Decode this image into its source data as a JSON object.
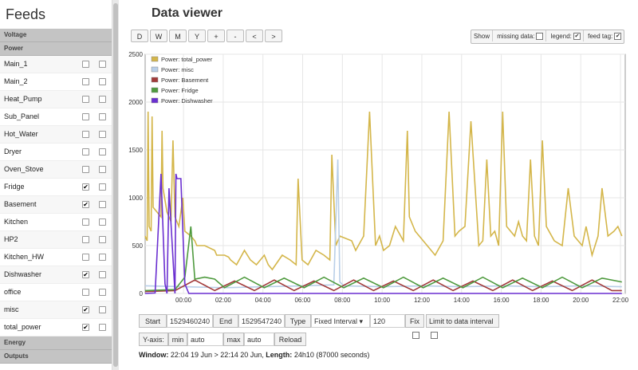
{
  "sidebar": {
    "title": "Feeds",
    "groups": {
      "voltage": "Voltage",
      "power": "Power",
      "energy": "Energy",
      "outputs": "Outputs"
    },
    "feeds": [
      {
        "name": "Main_1",
        "left": false,
        "right": false
      },
      {
        "name": "Main_2",
        "left": false,
        "right": false
      },
      {
        "name": "Heat_Pump",
        "left": false,
        "right": false
      },
      {
        "name": "Sub_Panel",
        "left": false,
        "right": false
      },
      {
        "name": "Hot_Water",
        "left": false,
        "right": false
      },
      {
        "name": "Dryer",
        "left": false,
        "right": false
      },
      {
        "name": "Oven_Stove",
        "left": false,
        "right": false
      },
      {
        "name": "Fridge",
        "left": true,
        "right": false
      },
      {
        "name": "Basement",
        "left": true,
        "right": false
      },
      {
        "name": "Kitchen",
        "left": false,
        "right": false
      },
      {
        "name": "HP2",
        "left": false,
        "right": false
      },
      {
        "name": "Kitchen_HW",
        "left": false,
        "right": false
      },
      {
        "name": "Dishwasher",
        "left": true,
        "right": false
      },
      {
        "name": "office",
        "left": false,
        "right": false
      },
      {
        "name": "misc",
        "left": true,
        "right": false
      },
      {
        "name": "total_power",
        "left": true,
        "right": false
      }
    ]
  },
  "main": {
    "title": "Data viewer",
    "range_buttons": [
      "D",
      "W",
      "M",
      "Y",
      "+",
      "-",
      "<",
      ">"
    ],
    "options": {
      "show": "Show",
      "missing_data": "missing data:",
      "legend": "legend:",
      "feed_tag": "feed tag:",
      "missing_checked": false,
      "legend_checked": true,
      "feed_tag_checked": true
    }
  },
  "controls": {
    "start_label": "Start",
    "start_value": "1529460240",
    "end_label": "End",
    "end_value": "1529547240",
    "type_label": "Type",
    "type_value": "Fixed Interval",
    "interval_value": "120",
    "fix_label": "Fix",
    "limit_label": "Limit to data interval",
    "yaxis_label": "Y-axis:",
    "min_label": "min",
    "min_value": "auto",
    "max_label": "max",
    "max_value": "auto",
    "reload_label": "Reload"
  },
  "window_info": {
    "window_label": "Window:",
    "window_value": "22:04 19 Jun > 22:14 20 Jun,",
    "length_label": "Length:",
    "length_value": "24h10 (87000 seconds)"
  },
  "chart_data": {
    "type": "line",
    "x_ticks": [
      "00:00",
      "02:00",
      "04:00",
      "06:00",
      "08:00",
      "10:00",
      "12:00",
      "14:00",
      "16:00",
      "18:00",
      "20:00",
      "22:00"
    ],
    "x_tick_hours": [
      1.93,
      3.93,
      5.93,
      7.93,
      9.93,
      11.93,
      13.93,
      15.93,
      17.93,
      19.93,
      21.93,
      23.93
    ],
    "xlim": [
      0,
      24.17
    ],
    "ylim": [
      0,
      2500
    ],
    "y_ticks": [
      0,
      500,
      1000,
      1500,
      2000,
      2500
    ],
    "legend": [
      "Power: total_power",
      "Power: misc",
      "Power: Basement",
      "Power: Fridge",
      "Power: Dishwasher"
    ],
    "colors": {
      "total_power": "#d4b64a",
      "misc": "#b9cfe8",
      "basement": "#a23a3a",
      "fridge": "#4e9a3e",
      "dishwasher": "#6a2fd0"
    },
    "series": [
      {
        "name": "Power: total_power",
        "x": [
          0,
          0.1,
          0.15,
          0.2,
          0.3,
          0.35,
          0.4,
          0.8,
          0.85,
          0.9,
          1.1,
          1.3,
          1.4,
          1.5,
          1.7,
          1.9,
          2.0,
          2.3,
          2.5,
          2.6,
          3.0,
          3.5,
          3.6,
          4.0,
          4.2,
          4.3,
          4.6,
          5.0,
          5.3,
          5.6,
          6.0,
          6.2,
          6.4,
          6.9,
          7.3,
          7.6,
          7.7,
          7.9,
          8.2,
          8.6,
          9.0,
          9.3,
          9.4,
          9.6,
          9.8,
          10.4,
          10.6,
          11.0,
          11.3,
          11.6,
          11.8,
          12.0,
          12.3,
          12.6,
          13.0,
          13.2,
          13.3,
          13.6,
          14.0,
          14.2,
          14.6,
          15.0,
          15.3,
          15.6,
          15.8,
          16.1,
          16.4,
          16.8,
          17.0,
          17.2,
          17.4,
          17.6,
          17.8,
          18.0,
          18.2,
          18.6,
          18.8,
          19.0,
          19.2,
          19.4,
          19.6,
          19.8,
          20.0,
          20.2,
          20.6,
          21.0,
          21.3,
          21.6,
          21.8,
          22.0,
          22.2,
          22.5,
          22.8,
          23.0,
          23.3,
          23.6,
          23.8,
          24.0
        ],
        "values": [
          600,
          550,
          1900,
          700,
          650,
          1850,
          900,
          800,
          1700,
          1100,
          850,
          750,
          1600,
          800,
          700,
          1000,
          650,
          600,
          550,
          500,
          500,
          450,
          400,
          400,
          380,
          350,
          300,
          450,
          350,
          300,
          400,
          300,
          250,
          400,
          350,
          300,
          1200,
          350,
          300,
          450,
          400,
          350,
          1450,
          500,
          600,
          550,
          450,
          600,
          1900,
          500,
          600,
          450,
          500,
          700,
          550,
          1700,
          800,
          650,
          550,
          500,
          400,
          550,
          1900,
          600,
          650,
          700,
          1800,
          500,
          550,
          1400,
          600,
          650,
          500,
          1900,
          700,
          600,
          750,
          600,
          550,
          1400,
          600,
          500,
          1600,
          700,
          550,
          500,
          1100,
          600,
          550,
          500,
          700,
          400,
          600,
          1100,
          600,
          650,
          700,
          600
        ]
      },
      {
        "name": "Power: misc",
        "x": [
          0,
          2.0,
          4.0,
          6.0,
          8.0,
          9.5,
          9.7,
          9.8,
          10.0,
          12.0,
          14.0,
          16.0,
          18.0,
          20.0,
          22.0,
          24.0
        ],
        "values": [
          80,
          70,
          60,
          70,
          80,
          90,
          1400,
          120,
          80,
          70,
          80,
          70,
          80,
          70,
          80,
          70
        ]
      },
      {
        "name": "Power: Basement",
        "x": [
          0,
          1.5,
          2.5,
          3.5,
          4.5,
          5.5,
          6.5,
          7.5,
          8.5,
          9.5,
          10.5,
          11.5,
          12.5,
          13.5,
          14.5,
          15.5,
          16.5,
          17.5,
          18.5,
          19.5,
          20.5,
          21.5,
          22.5,
          23.5,
          24.0
        ],
        "values": [
          20,
          30,
          140,
          30,
          130,
          30,
          140,
          30,
          130,
          30,
          140,
          30,
          130,
          30,
          140,
          30,
          130,
          30,
          140,
          30,
          130,
          30,
          140,
          30,
          30
        ]
      },
      {
        "name": "Power: Fridge",
        "x": [
          0,
          1.5,
          2.0,
          2.3,
          2.5,
          3.0,
          3.5,
          4.0,
          5.0,
          6.0,
          7.0,
          8.0,
          9.0,
          10.0,
          11.0,
          12.0,
          13.0,
          14.0,
          15.0,
          16.0,
          17.0,
          18.0,
          19.0,
          20.0,
          21.0,
          22.0,
          23.0,
          24.0
        ],
        "values": [
          30,
          40,
          170,
          700,
          150,
          170,
          150,
          60,
          170,
          60,
          160,
          60,
          170,
          60,
          160,
          60,
          170,
          60,
          160,
          60,
          170,
          60,
          160,
          60,
          170,
          60,
          160,
          120
        ]
      },
      {
        "name": "Power: Dishwasher",
        "x": [
          0,
          0.5,
          0.8,
          1.0,
          1.1,
          1.2,
          1.5,
          1.55,
          1.6,
          1.8,
          2.0,
          2.2,
          2.3,
          24.0
        ],
        "values": [
          0,
          5,
          1250,
          100,
          0,
          1100,
          0,
          1250,
          1200,
          1200,
          100,
          0,
          0,
          0
        ]
      }
    ]
  }
}
